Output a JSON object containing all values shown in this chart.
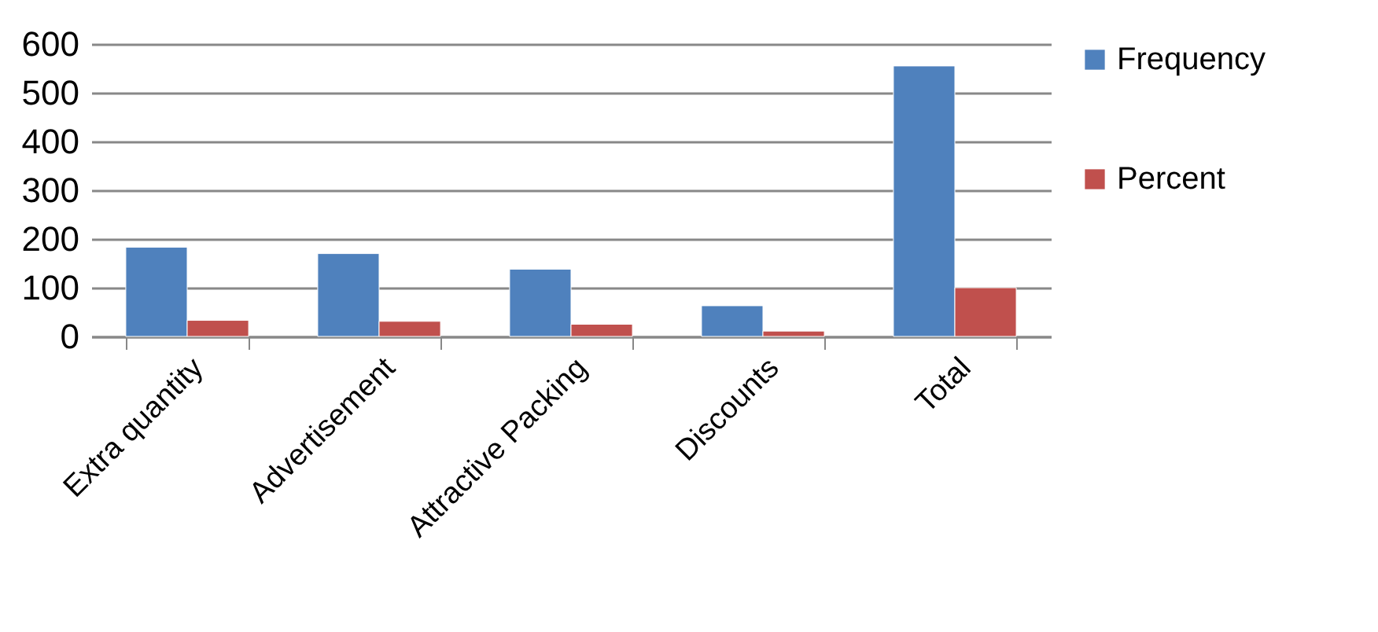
{
  "chart_data": {
    "type": "bar",
    "categories": [
      "Extra quantity",
      "Advertisement",
      "Attractive Packing",
      "Discounts",
      "Total"
    ],
    "series": [
      {
        "name": "Frequency",
        "color": "#4f81bd",
        "values": [
          183,
          170,
          138,
          63,
          555
        ]
      },
      {
        "name": "Percent",
        "color": "#c0504d",
        "values": [
          33,
          31,
          25,
          11,
          100
        ]
      }
    ],
    "ylim": [
      0,
      600
    ],
    "yticks": [
      0,
      100,
      200,
      300,
      400,
      500,
      600
    ],
    "grid": "y",
    "legend": "right"
  }
}
